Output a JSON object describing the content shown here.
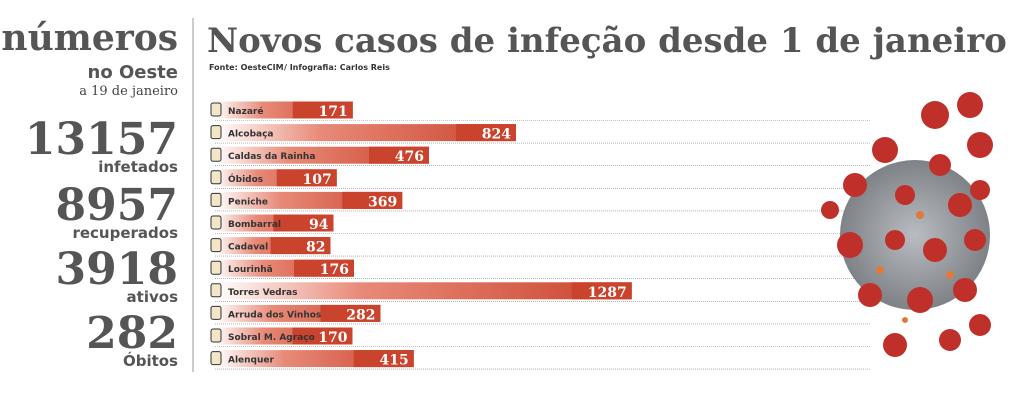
{
  "sidebar": {
    "heading": "números",
    "region": "no Oeste",
    "date": "a 19 de janeiro",
    "stats": [
      {
        "value": 13157,
        "label": "infetados"
      },
      {
        "value": 8957,
        "label": "recuperados"
      },
      {
        "value": 3918,
        "label": "ativos"
      },
      {
        "value": 282,
        "label": "Óbitos"
      }
    ]
  },
  "chart_data": {
    "type": "bar",
    "orientation": "horizontal",
    "title": "Novos casos de infeção desde 1 de janeiro",
    "source": "Fonte: OesteCIM",
    "credit": "/ Infografia: Carlos Reis",
    "categories": [
      "Nazaré",
      "Alcobaça",
      "Caldas da Rainha",
      "Óbidos",
      "Peniche",
      "Bombarral",
      "Cadaval",
      "Lourinhã",
      "Torres Vedras",
      "Arruda dos Vinhos",
      "Sobral M. Agraço",
      "Alenquer"
    ],
    "values": [
      171,
      824,
      476,
      107,
      369,
      94,
      82,
      176,
      1287,
      282,
      170,
      415
    ],
    "color": "#c9432d"
  }
}
